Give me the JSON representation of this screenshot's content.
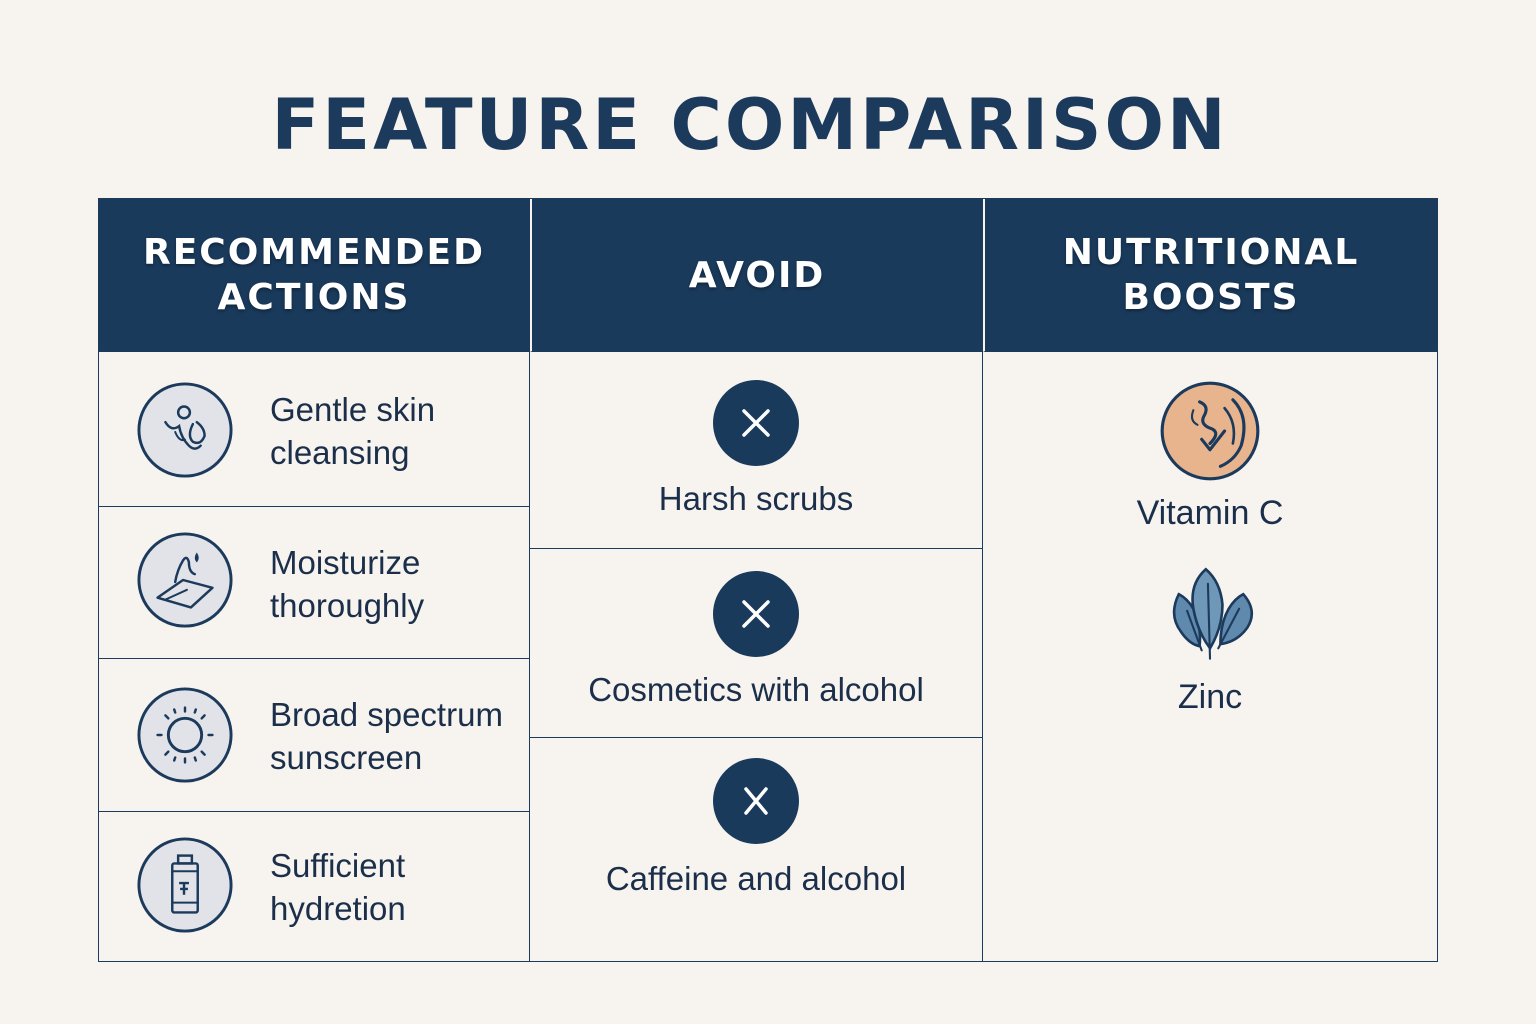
{
  "title": "FEATURE COMPARISON",
  "columns": {
    "recommended": {
      "header": "RECOMMENDED\nACTIONS",
      "items": [
        {
          "label": "Gentle skin\ncleansing",
          "icon": "face-cleansing-icon"
        },
        {
          "label": "Moisturize\nthoroughly",
          "icon": "moisturizer-hand-icon"
        },
        {
          "label": "Broad spectrum\nsunscreen",
          "icon": "sun-icon"
        },
        {
          "label": "Sufficient\nhydretion",
          "icon": "water-bottle-icon"
        }
      ]
    },
    "avoid": {
      "header": "AVOID",
      "items": [
        {
          "label": "Harsh scrubs",
          "icon": "x-icon"
        },
        {
          "label": "Cosmetics with alcohol",
          "icon": "x-icon"
        },
        {
          "label": "Caffeine and alcohol",
          "icon": "x-icon"
        }
      ]
    },
    "nutritional": {
      "header": "NUTRITIONAL\nBOOSTS",
      "items": [
        {
          "label": "Vitamin C",
          "icon": "citrus-icon"
        },
        {
          "label": "Zinc",
          "icon": "spinach-leaves-icon"
        }
      ]
    }
  },
  "colors": {
    "navy": "#1a3a5c",
    "background": "#f7f3ef",
    "icon_fill": "#e1e3e8",
    "citrus": "#e8b48e",
    "leaf": "#5f89ad"
  }
}
